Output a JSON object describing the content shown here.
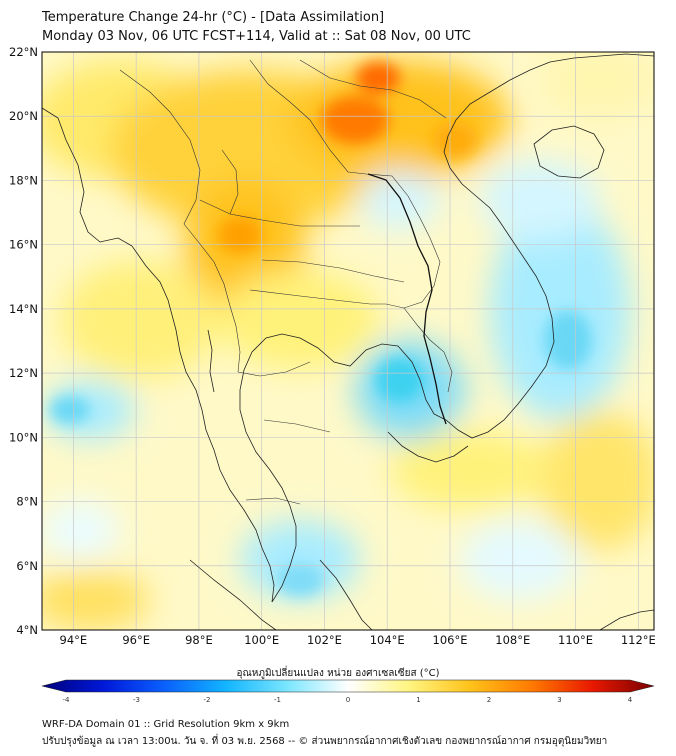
{
  "header": {
    "title": "Temperature Change 24-hr (°C) - [Data Assimilation]",
    "subtitle": "Monday 03 Nov, 06 UTC FCST+114, Valid at :: Sat 08 Nov, 00 UTC"
  },
  "map": {
    "lat_range": [
      4,
      22
    ],
    "lon_range": [
      93,
      112.5
    ],
    "lat_ticks": [
      "4°N",
      "6°N",
      "8°N",
      "10°N",
      "12°N",
      "14°N",
      "16°N",
      "18°N",
      "20°N",
      "22°N"
    ],
    "lon_ticks": [
      "94°E",
      "96°E",
      "98°E",
      "100°E",
      "102°E",
      "104°E",
      "106°E",
      "108°E",
      "110°E",
      "112°E"
    ],
    "gridlines": true,
    "colors": {
      "strong_warm": "#ff6a00",
      "warm": "#ffc21a",
      "light_warm": "#fff27a",
      "neutral": "#ffffff",
      "cool": "#a8f0ff",
      "strong_cool": "#3ed2f0"
    }
  },
  "colorbar": {
    "title": "อุณหภูมิเปลี่ยนแปลง หน่วย องศาเซลเซียส (°C)",
    "min": -4,
    "max": 4,
    "tick_labels": [
      "-4",
      "-3",
      "-2",
      "-1",
      "0",
      "1",
      "2",
      "3",
      "4"
    ],
    "stops": [
      "#00007a",
      "#0018d8",
      "#0a60ff",
      "#12b4ff",
      "#7ae6ff",
      "#ffffff",
      "#fff580",
      "#ffc21a",
      "#ff7a00",
      "#e81800",
      "#780000"
    ]
  },
  "footer": {
    "line1": "WRF-DA Domain 01 :: Grid Resolution 9km x 9km",
    "line2": "ปรับปรุงข้อมูล ณ เวลา 13:00น. วัน จ. ที่ 03 พ.ย. 2568 -- © ส่วนพยากรณ์อากาศเชิงตัวเลข กองพยากรณ์อากาศ กรมอุตุนิยมวิทยา"
  }
}
